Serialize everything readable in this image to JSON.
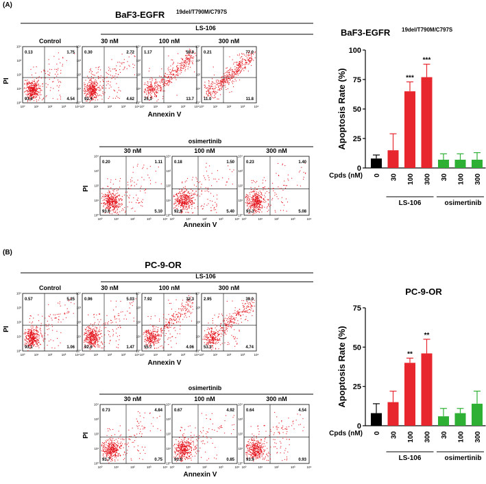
{
  "panelA": {
    "letter": "(A)",
    "title_main": "BaF3-EGFR",
    "title_sup": "19del/T790M/C797S",
    "groups": {
      "ls": "LS-106",
      "osi": "osimertinib"
    },
    "axis": {
      "y": "PI",
      "x": "Annexin V"
    },
    "top_row": [
      {
        "label": "Control",
        "q": [
          "0.13",
          "1.75",
          "93.6",
          "4.54"
        ],
        "density": 0.0
      },
      {
        "label": "30 nM",
        "q": [
          "0.30",
          "2.72",
          "92.4",
          "4.62"
        ],
        "density": 0.05
      },
      {
        "label": "100 nM",
        "q": [
          "1.17",
          "59.9",
          "25.3",
          "13.7"
        ],
        "density": 0.7
      },
      {
        "label": "300 nM",
        "q": [
          "0.21",
          "77.0",
          "11.0",
          "11.8"
        ],
        "density": 0.85
      }
    ],
    "bottom_row": [
      {
        "label": "30 nM",
        "q": [
          "0.20",
          "1.11",
          "93.6",
          "5.10"
        ],
        "density": 0.0
      },
      {
        "label": "100 nM",
        "q": [
          "0.18",
          "1.50",
          "92.9",
          "5.40"
        ],
        "density": 0.0
      },
      {
        "label": "300 nM",
        "q": [
          "0.23",
          "1.40",
          "93.3",
          "5.08"
        ],
        "density": 0.0
      }
    ]
  },
  "panelB": {
    "letter": "(B)",
    "title_main": "PC-9-OR",
    "groups": {
      "ls": "LS-106",
      "osi": "osimertinib"
    },
    "axis": {
      "y": "PI",
      "x": "Annexin V"
    },
    "top_row": [
      {
        "label": "Control",
        "q": [
          "0.57",
          "5.25",
          "93.1",
          "1.06"
        ],
        "density": 0.05
      },
      {
        "label": "30 nM",
        "q": [
          "0.96",
          "5.03",
          "92.6",
          "1.47"
        ],
        "density": 0.05
      },
      {
        "label": "100 nM",
        "q": [
          "7.92",
          "32.3",
          "55.7",
          "4.06"
        ],
        "density": 0.4
      },
      {
        "label": "300 nM",
        "q": [
          "2.95",
          "39.0",
          "53.3",
          "4.74"
        ],
        "density": 0.5
      }
    ],
    "bottom_row": [
      {
        "label": "30 nM",
        "q": [
          "0.73",
          "4.84",
          "93.7",
          "0.75"
        ],
        "density": 0.05
      },
      {
        "label": "100 nM",
        "q": [
          "0.67",
          "4.92",
          "93.6",
          "0.85"
        ],
        "density": 0.05
      },
      {
        "label": "300 nM",
        "q": [
          "0.64",
          "4.54",
          "93.9",
          "0.93"
        ],
        "density": 0.05
      }
    ]
  },
  "flow_ticks": [
    "10⁰",
    "10¹",
    "10²",
    "10³",
    "10⁴"
  ],
  "colors": {
    "control": "#000000",
    "ls106": "#e8262d",
    "osimertinib": "#2db034",
    "dots": "#e4131c"
  },
  "chart_data": [
    {
      "type": "bar",
      "title": "BaF3-EGFR",
      "title_sup": "19del/T790M/C797S",
      "ylabel": "Apoptosis Rate (%)",
      "xlabel": "Cpds (nM)",
      "ylim": [
        0,
        100
      ],
      "yticks": [
        "0",
        "25",
        "50",
        "75",
        "100"
      ],
      "categories": [
        "0",
        "30",
        "100",
        "300",
        "30",
        "100",
        "300"
      ],
      "values": [
        8,
        15,
        65,
        77,
        7,
        7,
        7
      ],
      "errors": [
        3,
        14,
        8,
        11,
        5,
        5,
        6
      ],
      "significance": [
        "",
        "",
        "***",
        "***",
        "",
        "",
        ""
      ],
      "groups": [
        "",
        "LS-106",
        "LS-106",
        "LS-106",
        "osimertinib",
        "osimertinib",
        "osimertinib"
      ],
      "group_labels": [
        "LS-106",
        "osimertinib"
      ]
    },
    {
      "type": "bar",
      "title": "PC-9-OR",
      "ylabel": "Apoptosis Rate (%)",
      "xlabel": "Cpds (nM)",
      "ylim": [
        0,
        75
      ],
      "yticks": [
        "0",
        "25",
        "50",
        "75"
      ],
      "categories": [
        "0",
        "30",
        "100",
        "300",
        "30",
        "100",
        "300"
      ],
      "values": [
        8,
        15,
        40,
        46,
        6,
        8,
        14
      ],
      "errors": [
        6,
        7,
        3,
        9,
        5,
        3,
        8
      ],
      "significance": [
        "",
        "",
        "**",
        "**",
        "",
        "",
        ""
      ],
      "groups": [
        "",
        "LS-106",
        "LS-106",
        "LS-106",
        "osimertinib",
        "osimertinib",
        "osimertinib"
      ],
      "group_labels": [
        "LS-106",
        "osimertinib"
      ]
    }
  ]
}
